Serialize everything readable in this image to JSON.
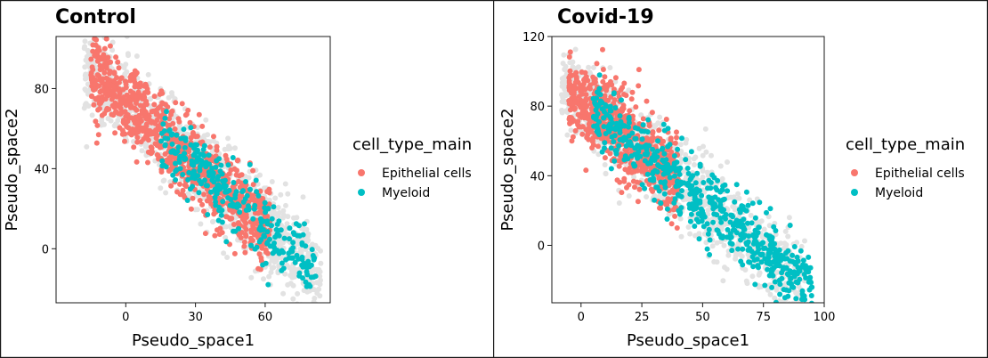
{
  "colors": {
    "background_points": "#e2e2e2",
    "epithelial": "#f8766d",
    "myeloid": "#00bfc4"
  },
  "legend": {
    "title": "cell_type_main",
    "entries": [
      "Epithelial cells",
      "Myeloid"
    ]
  },
  "chart_data": [
    {
      "type": "scatter",
      "title": "Control",
      "xlabel": "Pseudo_space1",
      "ylabel": "Pseudo_space2",
      "xlim": [
        -30,
        88
      ],
      "ylim": [
        -27,
        106
      ],
      "xticks": [
        0,
        30,
        60
      ],
      "yticks": [
        0,
        40,
        80
      ],
      "legend_position": "right",
      "background_cloud": {
        "description_values": "light grey points from all cells",
        "trend": {
          "slope": -1.02,
          "intercept": 72,
          "x_range": [
            -18,
            84
          ],
          "noise": 11
        }
      },
      "series": [
        {
          "name": "Epithelial cells",
          "trend": {
            "slope": -1.05,
            "intercept": 73,
            "x_range": [
              -15,
              62
            ],
            "noise": 10
          },
          "approx_count": 900
        },
        {
          "name": "Myeloid",
          "trend": {
            "slope": -1.05,
            "intercept": 73,
            "x_range": [
              15,
              82
            ],
            "noise": 8
          },
          "approx_count": 300
        }
      ]
    },
    {
      "type": "scatter",
      "title": "Covid-19",
      "xlabel": "Pseudo_space1",
      "ylabel": "Pseudo_space2",
      "xlim": [
        -12,
        100
      ],
      "ylim": [
        -33,
        120
      ],
      "xticks": [
        0,
        25,
        50,
        75,
        100
      ],
      "yticks": [
        0,
        40,
        80,
        120
      ],
      "legend_position": "right",
      "background_cloud": {
        "description_values": "light grey points from all cells",
        "trend": {
          "slope": -1.15,
          "intercept": 83,
          "x_range": [
            -8,
            92
          ],
          "noise": 12
        }
      },
      "series": [
        {
          "name": "Epithelial cells",
          "trend": {
            "slope": -1.15,
            "intercept": 83,
            "x_range": [
              -5,
              40
            ],
            "noise": 12
          },
          "approx_count": 700
        },
        {
          "name": "Myeloid",
          "trend": {
            "slope": -1.15,
            "intercept": 83,
            "x_range": [
              5,
              95
            ],
            "noise": 10
          },
          "approx_count": 600
        }
      ]
    }
  ]
}
